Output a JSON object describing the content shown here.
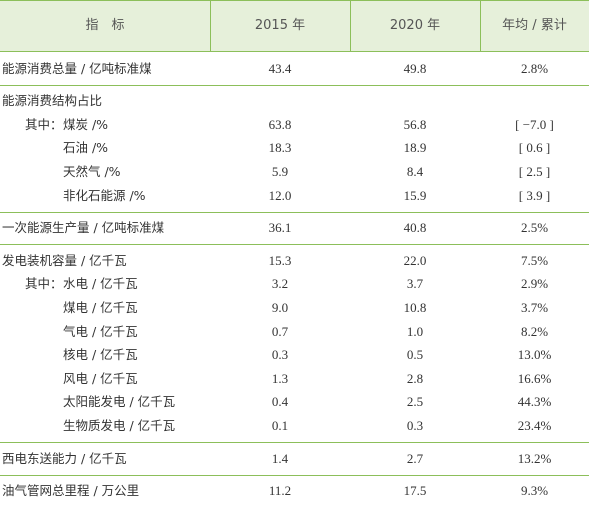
{
  "header": [
    "指　标",
    "2015 年",
    "2020 年",
    "年均 / 累计"
  ],
  "groups": [
    {
      "title": [
        "能源消费总量 / 亿吨标准煤",
        "43.4",
        "49.8",
        "2.8%"
      ]
    },
    {
      "title": [
        "能源消费结构占比"
      ],
      "prefix": "其中：",
      "items": [
        [
          "煤炭 /%",
          "63.8",
          "56.8",
          "[ −7.0 ]"
        ],
        [
          "石油 /%",
          "18.3",
          "18.9",
          "[ 0.6 ]"
        ],
        [
          "天然气 /%",
          "5.9",
          "8.4",
          "[ 2.5 ]"
        ],
        [
          "非化石能源 /%",
          "12.0",
          "15.9",
          "[ 3.9 ]"
        ]
      ]
    },
    {
      "title": [
        "一次能源生产量 / 亿吨标准煤",
        "36.1",
        "40.8",
        "2.5%"
      ]
    },
    {
      "title": [
        "发电装机容量 / 亿千瓦",
        "15.3",
        "22.0",
        "7.5%"
      ],
      "prefix": "其中：",
      "items": [
        [
          "水电 / 亿千瓦",
          "3.2",
          "3.7",
          "2.9%"
        ],
        [
          "煤电 / 亿千瓦",
          "9.0",
          "10.8",
          "3.7%"
        ],
        [
          "气电 / 亿千瓦",
          "0.7",
          "1.0",
          "8.2%"
        ],
        [
          "核电 / 亿千瓦",
          "0.3",
          "0.5",
          "13.0%"
        ],
        [
          "风电 / 亿千瓦",
          "1.3",
          "2.8",
          "16.6%"
        ],
        [
          "太阳能发电 / 亿千瓦",
          "0.4",
          "2.5",
          "44.3%"
        ],
        [
          "生物质发电 / 亿千瓦",
          "0.1",
          "0.3",
          "23.4%"
        ]
      ]
    },
    {
      "title": [
        "西电东送能力 / 亿千瓦",
        "1.4",
        "2.7",
        "13.2%"
      ]
    },
    {
      "title": [
        "油气管网总里程 / 万公里",
        "11.2",
        "17.5",
        "9.3%"
      ]
    }
  ]
}
